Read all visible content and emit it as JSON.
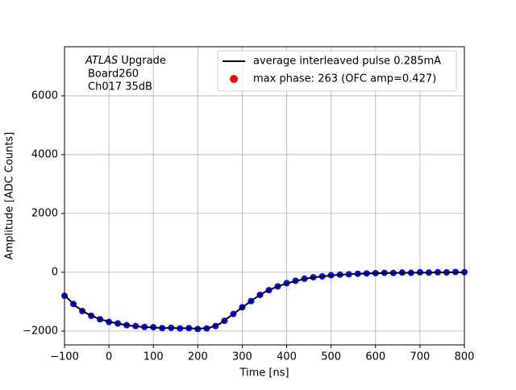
{
  "chart_data": {
    "type": "line",
    "xlabel": "Time [ns]",
    "ylabel": "Amplitude [ADC Counts]",
    "annotation_italic": "ATLAS",
    "annotation_lines": [
      "Upgrade",
      "Board260",
      "Ch017 35dB"
    ],
    "xlim": [
      -100,
      800
    ],
    "ylim": [
      -2470,
      7670
    ],
    "xticks": [
      {
        "value": -100,
        "label": "−100"
      },
      0,
      100,
      200,
      300,
      400,
      500,
      600,
      700,
      800
    ],
    "yticks": [
      {
        "value": -2000,
        "label": "−2000"
      },
      0,
      2000,
      4000,
      6000
    ],
    "grid": true,
    "legend": "upper right",
    "series": [
      {
        "color": "#0000ff",
        "style": "dots",
        "x": [
          -100,
          -80,
          -60,
          -40,
          -20,
          0,
          20,
          40,
          60,
          80,
          100,
          120,
          140,
          160,
          180,
          200,
          220,
          240,
          260,
          280,
          300,
          320,
          340,
          360,
          380,
          400,
          420,
          440,
          460,
          480,
          500,
          520,
          540,
          560,
          580,
          600,
          620,
          640,
          660,
          680,
          700,
          720,
          740,
          760,
          780,
          800
        ],
        "values": [
          -800,
          -1080,
          -1320,
          -1480,
          -1600,
          -1690,
          -1740,
          -1800,
          -1830,
          -1860,
          -1870,
          -1900,
          -1890,
          -1910,
          -1900,
          -1930,
          -1910,
          -1830,
          -1650,
          -1420,
          -1190,
          -980,
          -770,
          -610,
          -480,
          -370,
          -290,
          -220,
          -170,
          -140,
          -100,
          -80,
          -70,
          -50,
          -40,
          -30,
          -20,
          -25,
          -10,
          -20,
          0,
          -10,
          0,
          -5,
          10,
          5
        ]
      },
      {
        "name": "average interleaved pulse 0.285mA",
        "color": "#000000",
        "style": "line",
        "x": [
          -100,
          -75,
          -50,
          -25,
          0,
          25,
          50,
          75,
          100,
          125,
          150,
          175,
          200,
          225,
          250,
          275,
          300,
          325,
          350,
          375,
          400,
          425,
          450,
          475,
          500,
          525,
          550,
          575,
          600,
          625,
          650,
          675,
          700,
          725,
          750,
          775,
          800
        ],
        "values": [
          -780,
          -1150,
          -1400,
          -1570,
          -1680,
          -1760,
          -1820,
          -1860,
          -1880,
          -1895,
          -1900,
          -1905,
          -1915,
          -1900,
          -1750,
          -1470,
          -1200,
          -920,
          -680,
          -510,
          -380,
          -280,
          -200,
          -150,
          -110,
          -80,
          -60,
          -45,
          -35,
          -28,
          -22,
          -18,
          -14,
          -10,
          -8,
          -5,
          -3
        ]
      },
      {
        "name": "max phase: 263 (OFC amp=0.427)",
        "color": "#ff0000",
        "style": "dots",
        "x": [],
        "values": []
      }
    ]
  }
}
